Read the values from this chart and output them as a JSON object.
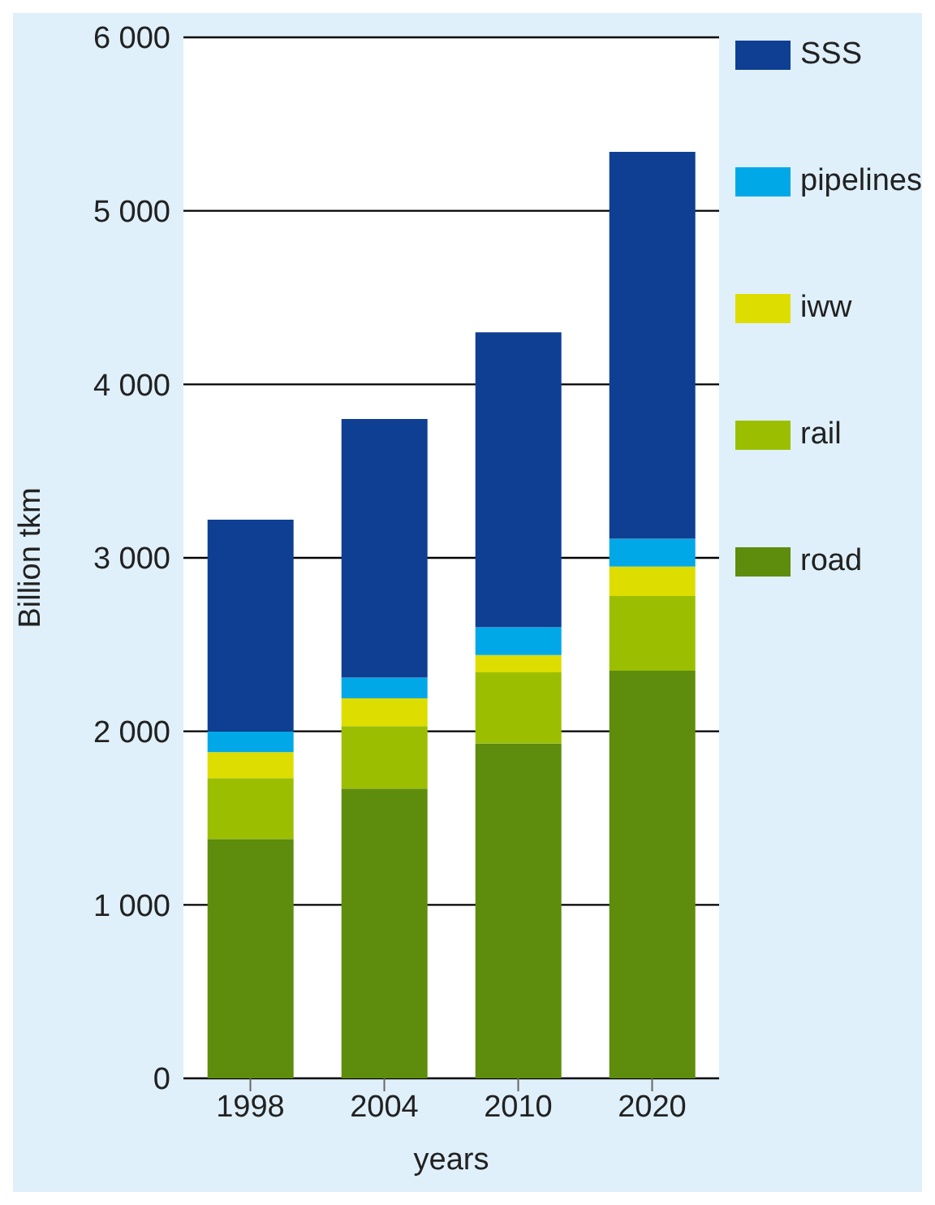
{
  "chart_data": {
    "type": "bar",
    "stacked": true,
    "xlabel": "years",
    "ylabel": "Billion tkm",
    "categories": [
      "1998",
      "2004",
      "2010",
      "2020"
    ],
    "series": [
      {
        "name": "road",
        "color": "#5e8c0c",
        "values": [
          1380,
          1670,
          1930,
          2350
        ]
      },
      {
        "name": "rail",
        "color": "#9bbf00",
        "values": [
          350,
          360,
          410,
          430
        ]
      },
      {
        "name": "iww",
        "color": "#dddd00",
        "values": [
          150,
          160,
          100,
          170
        ]
      },
      {
        "name": "pipelines",
        "color": "#00a8e8",
        "values": [
          120,
          120,
          160,
          160
        ]
      },
      {
        "name": "SSS",
        "color": "#0f3f93",
        "values": [
          1220,
          1490,
          1700,
          2230
        ]
      }
    ],
    "ylim": [
      0,
      6000
    ],
    "yticks": [
      {
        "value": 0,
        "label": "0"
      },
      {
        "value": 1000,
        "label": "1 000"
      },
      {
        "value": 2000,
        "label": "2 000"
      },
      {
        "value": 3000,
        "label": "3 000"
      },
      {
        "value": 4000,
        "label": "4 000"
      },
      {
        "value": 5000,
        "label": "5 000"
      },
      {
        "value": 6000,
        "label": "6 000"
      }
    ],
    "grid": "y",
    "legend": "right"
  }
}
